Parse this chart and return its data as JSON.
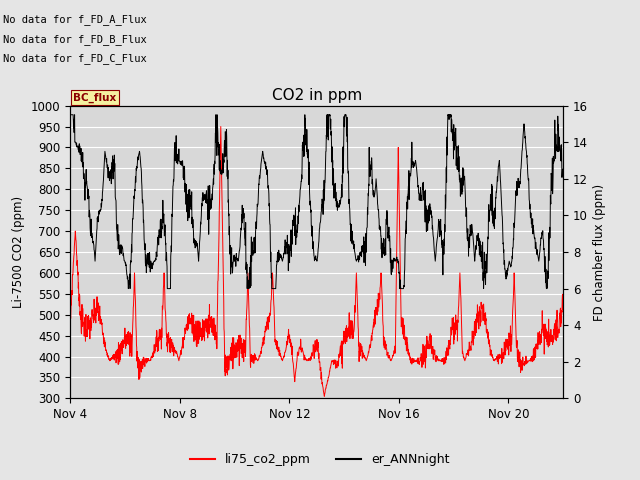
{
  "title": "CO2 in ppm",
  "ylabel_left": "Li-7500 CO2 (ppm)",
  "ylabel_right": "FD chamber flux (ppm)",
  "ylim_left": [
    300,
    1000
  ],
  "ylim_right": [
    0,
    16
  ],
  "xtick_labels": [
    "Nov 4",
    "Nov 8",
    "Nov 12",
    "Nov 16",
    "Nov 20"
  ],
  "yticks_left": [
    300,
    350,
    400,
    450,
    500,
    550,
    600,
    650,
    700,
    750,
    800,
    850,
    900,
    950,
    1000
  ],
  "yticks_right": [
    0,
    2,
    4,
    6,
    8,
    10,
    12,
    14,
    16
  ],
  "no_data_texts": [
    "No data for f_FD_A_Flux",
    "No data for f_FD_B_Flux",
    "No data for f_FD_C_Flux"
  ],
  "bc_flux_label": "BC_flux",
  "legend_entries": [
    "li75_co2_ppm",
    "er_ANNnight"
  ],
  "bg_color": "#e5e5e5",
  "plot_bg_color": "#d8d8d8",
  "n_points": 2000
}
